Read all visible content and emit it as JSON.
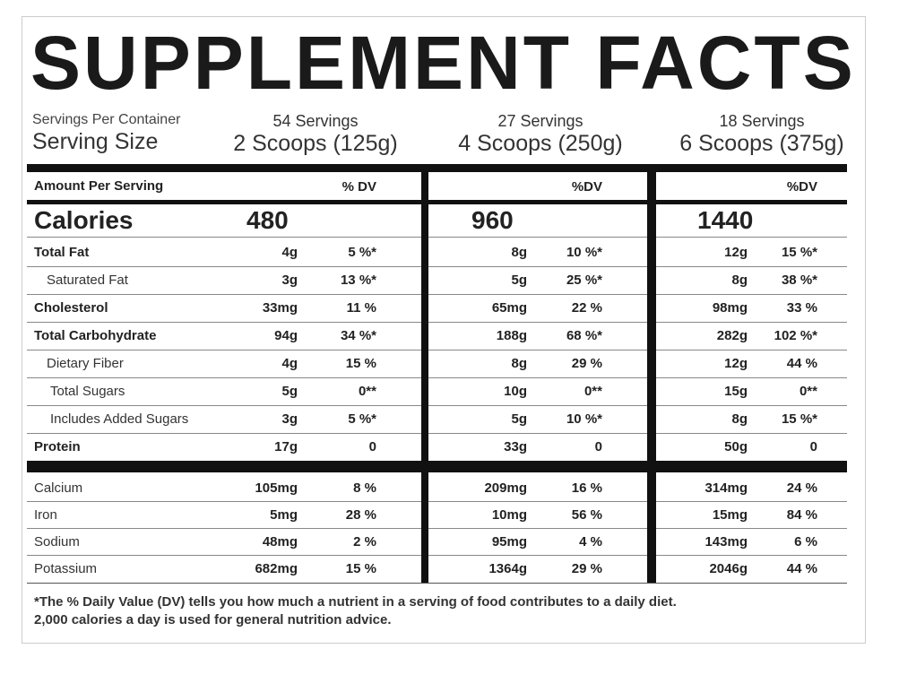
{
  "title": "SUPPLEMENT FACTS",
  "servings_per_container_label": "Servings Per Container",
  "serving_size_label": "Serving Size",
  "columns": [
    {
      "servings": "54 Servings",
      "size": "2 Scoops (125g)",
      "dv_header": "% DV",
      "calories": "480"
    },
    {
      "servings": "27 Servings",
      "size": "4 Scoops (250g)",
      "dv_header": "%DV",
      "calories": "960"
    },
    {
      "servings": "18 Servings",
      "size": "6 Scoops (375g)",
      "dv_header": "%DV",
      "calories": "1440"
    }
  ],
  "amount_per_serving_label": "Amount Per Serving",
  "calories_label": "Calories",
  "nutrients": [
    {
      "name": "Total Fat",
      "amounts": [
        [
          "4g",
          "5 %*"
        ],
        [
          "8g",
          "10 %*"
        ],
        [
          "12g",
          "15 %*"
        ]
      ]
    },
    {
      "name": "Saturated Fat",
      "amounts": [
        [
          "3g",
          "13 %*"
        ],
        [
          "5g",
          "25 %*"
        ],
        [
          "8g",
          "38 %*"
        ]
      ]
    },
    {
      "name": "Cholesterol",
      "amounts": [
        [
          "33mg",
          "11 %"
        ],
        [
          "65mg",
          "22 %"
        ],
        [
          "98mg",
          "33 %"
        ]
      ]
    },
    {
      "name": "Total Carbohydrate",
      "amounts": [
        [
          "94g",
          "34 %*"
        ],
        [
          "188g",
          "68 %*"
        ],
        [
          "282g",
          "102 %*"
        ]
      ]
    },
    {
      "name": "Dietary Fiber",
      "amounts": [
        [
          "4g",
          "15 %"
        ],
        [
          "8g",
          "29 %"
        ],
        [
          "12g",
          "44 %"
        ]
      ]
    },
    {
      "name": "Total Sugars",
      "amounts": [
        [
          "5g",
          "0**"
        ],
        [
          "10g",
          "0**"
        ],
        [
          "15g",
          "0**"
        ]
      ]
    },
    {
      "name": "Includes Added Sugars",
      "amounts": [
        [
          "3g",
          "5 %*"
        ],
        [
          "5g",
          "10 %*"
        ],
        [
          "8g",
          "15 %*"
        ]
      ]
    },
    {
      "name": "Protein",
      "amounts": [
        [
          "17g",
          "0"
        ],
        [
          "33g",
          "0"
        ],
        [
          "50g",
          "0"
        ]
      ]
    }
  ],
  "minerals": [
    {
      "name": "Calcium",
      "amounts": [
        [
          "105mg",
          "8 %"
        ],
        [
          "209mg",
          "16 %"
        ],
        [
          "314mg",
          "24 %"
        ]
      ]
    },
    {
      "name": "Iron",
      "amounts": [
        [
          "5mg",
          "28 %"
        ],
        [
          "10mg",
          "56 %"
        ],
        [
          "15mg",
          "84 %"
        ]
      ]
    },
    {
      "name": "Sodium",
      "amounts": [
        [
          "48mg",
          "2 %"
        ],
        [
          "95mg",
          "4 %"
        ],
        [
          "143mg",
          "6 %"
        ]
      ]
    },
    {
      "name": "Potassium",
      "amounts": [
        [
          "682mg",
          "15 %"
        ],
        [
          "1364g",
          "29 %"
        ],
        [
          "2046g",
          "44 %"
        ]
      ]
    }
  ],
  "footnote": [
    "*The % Daily Value (DV) tells you how much a nutrient in a serving of food contributes to a daily diet.",
    "2,000 calories a day is used for general nutrition advice."
  ]
}
